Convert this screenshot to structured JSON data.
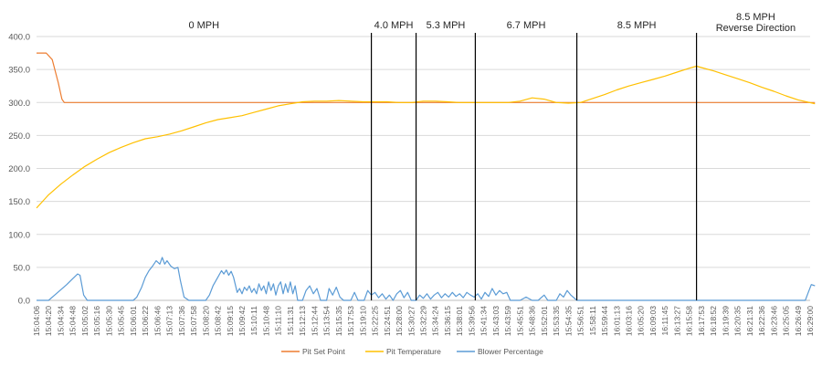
{
  "chart_data": {
    "type": "line",
    "title": "",
    "xlabel": "",
    "ylabel": "",
    "ylim": [
      0,
      400
    ],
    "y_ticks": [
      "0.0",
      "50.0",
      "100.0",
      "150.0",
      "200.0",
      "250.0",
      "300.0",
      "350.0",
      "400.0"
    ],
    "grid": "horizontal",
    "legend_position": "bottom",
    "x_tick_labels": [
      "15:04:06",
      "15:04:20",
      "15:04:34",
      "15:04:48",
      "15:05:02",
      "15:05:16",
      "15:05:30",
      "15:05:45",
      "15:06:01",
      "15:06:22",
      "15:06:46",
      "15:07:13",
      "15:07:36",
      "15:07:58",
      "15:08:20",
      "15:08:42",
      "15:09:15",
      "15:09:42",
      "15:10:11",
      "15:10:48",
      "15:11:10",
      "15:11:31",
      "15:12:13",
      "15:12:44",
      "15:13:54",
      "15:15:35",
      "15:17:53",
      "15:19:10",
      "15:22:25",
      "15:24:51",
      "15:28:00",
      "15:30:27",
      "15:32:29",
      "15:34:24",
      "15:36:15",
      "15:38:01",
      "15:39:56",
      "15:41:34",
      "15:43:03",
      "15:43:59",
      "15:45:51",
      "15:48:36",
      "15:52:01",
      "15:53:35",
      "15:54:35",
      "15:56:51",
      "15:58:11",
      "15:59:44",
      "16:01:13",
      "16:03:16",
      "16:05:20",
      "16:09:03",
      "16:11:45",
      "16:13:27",
      "16:15:58",
      "16:17:53",
      "16:18:52",
      "16:19:39",
      "16:20:35",
      "16:21:31",
      "16:22:36",
      "16:23:46",
      "16:25:05",
      "16:26:49",
      "16:29:00"
    ],
    "segments": [
      {
        "label": "0 MPH",
        "start": 0,
        "end": 27.7
      },
      {
        "label": "4.0 MPH",
        "start": 27.7,
        "end": 31.4
      },
      {
        "label": "5.3 MPH",
        "start": 31.4,
        "end": 36.3
      },
      {
        "label": "6.7 MPH",
        "start": 36.3,
        "end": 44.7
      },
      {
        "label": "8.5 MPH",
        "start": 44.7,
        "end": 54.6
      },
      {
        "label": "8.5 MPH",
        "label2": "Reverse Direction",
        "start": 54.6,
        "end": 64.4
      }
    ],
    "series": [
      {
        "name": "Pit Set Point",
        "color": "#ed7d31",
        "points": [
          [
            0,
            375
          ],
          [
            0.8,
            375
          ],
          [
            1.3,
            365
          ],
          [
            1.8,
            330
          ],
          [
            2.1,
            305
          ],
          [
            2.3,
            300
          ],
          [
            64.4,
            300
          ]
        ]
      },
      {
        "name": "Pit Temperature",
        "color": "#ffc000",
        "points": [
          [
            0,
            140
          ],
          [
            0.5,
            150
          ],
          [
            1,
            160
          ],
          [
            2,
            176
          ],
          [
            3,
            190
          ],
          [
            4,
            203
          ],
          [
            5,
            214
          ],
          [
            6,
            224
          ],
          [
            7,
            232
          ],
          [
            8,
            239
          ],
          [
            9,
            245
          ],
          [
            10,
            248
          ],
          [
            11,
            252
          ],
          [
            12,
            257
          ],
          [
            13,
            263
          ],
          [
            14,
            269
          ],
          [
            15,
            274
          ],
          [
            16,
            277
          ],
          [
            17,
            280
          ],
          [
            18,
            285
          ],
          [
            19,
            290
          ],
          [
            20,
            295
          ],
          [
            21,
            298
          ],
          [
            22,
            301
          ],
          [
            23,
            302
          ],
          [
            24,
            302
          ],
          [
            25,
            303
          ],
          [
            26,
            302
          ],
          [
            27,
            301
          ],
          [
            28,
            301
          ],
          [
            29,
            301
          ],
          [
            30,
            300
          ],
          [
            31,
            300
          ],
          [
            32,
            302
          ],
          [
            33,
            302
          ],
          [
            34,
            301
          ],
          [
            35,
            300
          ],
          [
            36,
            300
          ],
          [
            37,
            300
          ],
          [
            38,
            300
          ],
          [
            39,
            300
          ],
          [
            40,
            302
          ],
          [
            41,
            307
          ],
          [
            42,
            305
          ],
          [
            43,
            300
          ],
          [
            44,
            299
          ],
          [
            45,
            300
          ],
          [
            46,
            306
          ],
          [
            47,
            312
          ],
          [
            48,
            319
          ],
          [
            49,
            325
          ],
          [
            50,
            330
          ],
          [
            51,
            335
          ],
          [
            52,
            340
          ],
          [
            53,
            346
          ],
          [
            54,
            352
          ],
          [
            54.6,
            355
          ],
          [
            55,
            353
          ],
          [
            56,
            348
          ],
          [
            57,
            342
          ],
          [
            58,
            336
          ],
          [
            59,
            330
          ],
          [
            60,
            323
          ],
          [
            61,
            317
          ],
          [
            62,
            310
          ],
          [
            63,
            304
          ],
          [
            64.4,
            298
          ]
        ]
      },
      {
        "name": "Blower Percentage",
        "color": "#5b9bd5",
        "points": [
          [
            0,
            0
          ],
          [
            1,
            0
          ],
          [
            1.5,
            8
          ],
          [
            2,
            16
          ],
          [
            2.5,
            24
          ],
          [
            3,
            33
          ],
          [
            3.4,
            40
          ],
          [
            3.6,
            38
          ],
          [
            3.9,
            8
          ],
          [
            4.2,
            0
          ],
          [
            8,
            0
          ],
          [
            8.3,
            5
          ],
          [
            8.7,
            20
          ],
          [
            9,
            35
          ],
          [
            9.3,
            45
          ],
          [
            9.6,
            52
          ],
          [
            9.9,
            60
          ],
          [
            10.2,
            55
          ],
          [
            10.4,
            65
          ],
          [
            10.6,
            55
          ],
          [
            10.8,
            60
          ],
          [
            11.1,
            52
          ],
          [
            11.4,
            48
          ],
          [
            11.7,
            50
          ],
          [
            11.9,
            30
          ],
          [
            12.2,
            5
          ],
          [
            12.6,
            0
          ],
          [
            14,
            0
          ],
          [
            14.3,
            8
          ],
          [
            14.6,
            22
          ],
          [
            15,
            35
          ],
          [
            15.3,
            45
          ],
          [
            15.5,
            40
          ],
          [
            15.7,
            46
          ],
          [
            15.9,
            38
          ],
          [
            16.1,
            44
          ],
          [
            16.3,
            35
          ],
          [
            16.6,
            12
          ],
          [
            16.8,
            18
          ],
          [
            17,
            10
          ],
          [
            17.2,
            20
          ],
          [
            17.4,
            15
          ],
          [
            17.6,
            22
          ],
          [
            17.8,
            12
          ],
          [
            18,
            18
          ],
          [
            18.2,
            10
          ],
          [
            18.4,
            25
          ],
          [
            18.6,
            15
          ],
          [
            18.8,
            22
          ],
          [
            19,
            10
          ],
          [
            19.2,
            28
          ],
          [
            19.4,
            15
          ],
          [
            19.6,
            25
          ],
          [
            19.8,
            8
          ],
          [
            20,
            22
          ],
          [
            20.2,
            28
          ],
          [
            20.4,
            10
          ],
          [
            20.6,
            25
          ],
          [
            20.8,
            12
          ],
          [
            21,
            28
          ],
          [
            21.2,
            10
          ],
          [
            21.4,
            22
          ],
          [
            21.6,
            0
          ],
          [
            22,
            0
          ],
          [
            22.3,
            15
          ],
          [
            22.6,
            22
          ],
          [
            22.9,
            10
          ],
          [
            23.2,
            18
          ],
          [
            23.5,
            0
          ],
          [
            24,
            0
          ],
          [
            24.2,
            18
          ],
          [
            24.5,
            8
          ],
          [
            24.8,
            20
          ],
          [
            25.1,
            5
          ],
          [
            25.4,
            0
          ],
          [
            26,
            0
          ],
          [
            26.3,
            12
          ],
          [
            26.6,
            0
          ],
          [
            27.1,
            0
          ],
          [
            27.4,
            15
          ],
          [
            27.7,
            8
          ],
          [
            28,
            12
          ],
          [
            28.3,
            4
          ],
          [
            28.6,
            10
          ],
          [
            28.9,
            2
          ],
          [
            29.2,
            8
          ],
          [
            29.5,
            0
          ],
          [
            29.8,
            10
          ],
          [
            30.1,
            15
          ],
          [
            30.4,
            4
          ],
          [
            30.7,
            12
          ],
          [
            31,
            0
          ],
          [
            31.4,
            0
          ],
          [
            31.7,
            8
          ],
          [
            32,
            3
          ],
          [
            32.3,
            10
          ],
          [
            32.6,
            2
          ],
          [
            32.9,
            8
          ],
          [
            33.2,
            12
          ],
          [
            33.5,
            4
          ],
          [
            33.8,
            10
          ],
          [
            34.1,
            5
          ],
          [
            34.4,
            12
          ],
          [
            34.7,
            6
          ],
          [
            35,
            10
          ],
          [
            35.3,
            4
          ],
          [
            35.6,
            12
          ],
          [
            35.9,
            8
          ],
          [
            36.2,
            5
          ],
          [
            36.5,
            10
          ],
          [
            36.8,
            2
          ],
          [
            37.1,
            12
          ],
          [
            37.4,
            6
          ],
          [
            37.7,
            18
          ],
          [
            38,
            8
          ],
          [
            38.3,
            15
          ],
          [
            38.6,
            10
          ],
          [
            38.9,
            12
          ],
          [
            39.2,
            0
          ],
          [
            40,
            0
          ],
          [
            40.5,
            5
          ],
          [
            41,
            0
          ],
          [
            41.5,
            0
          ],
          [
            42,
            8
          ],
          [
            42.3,
            0
          ],
          [
            43,
            0
          ],
          [
            43.3,
            10
          ],
          [
            43.6,
            5
          ],
          [
            43.9,
            15
          ],
          [
            44.2,
            8
          ],
          [
            44.7,
            0
          ],
          [
            63.6,
            0
          ],
          [
            63.8,
            10
          ],
          [
            64.1,
            24
          ],
          [
            64.4,
            22
          ]
        ]
      }
    ]
  }
}
